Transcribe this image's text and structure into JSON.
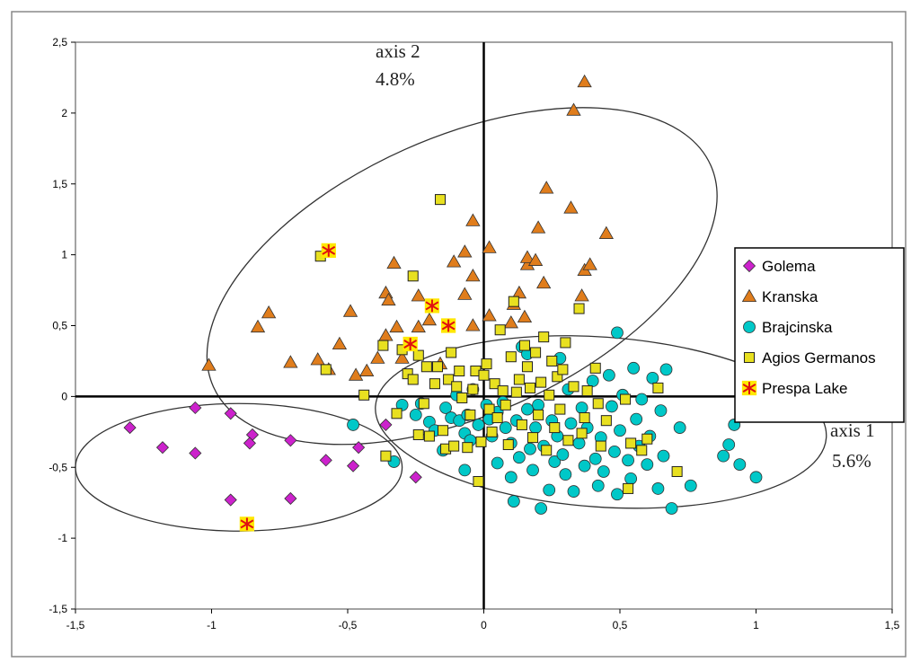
{
  "chart_data": {
    "type": "scatter",
    "title": "",
    "xlim": [
      -1.5,
      1.5
    ],
    "ylim": [
      -1.5,
      2.5
    ],
    "x_ticks": [
      "-1,5",
      "-1",
      "-0,5",
      "0",
      "0,5",
      "1",
      "1,5"
    ],
    "y_ticks": [
      "-1,5",
      "-1",
      "-0,5",
      "0",
      "0,5",
      "1",
      "1,5",
      "2",
      "2,5"
    ],
    "axis1": {
      "name": "axis 1",
      "percent": "5.6%"
    },
    "axis2": {
      "name": "axis 2",
      "percent": "4.8%"
    },
    "legend_position": "right",
    "ellipses": [
      {
        "group": "Kranska",
        "center": [
          -0.08,
          0.85
        ],
        "rx": 1.0,
        "ry": 0.98,
        "angle_deg": 24
      },
      {
        "group": "Brajcinska",
        "center": [
          0.43,
          -0.18
        ],
        "rx": 0.83,
        "ry": 0.6,
        "angle_deg": -4
      },
      {
        "group": "Golema",
        "center": [
          -0.9,
          -0.5
        ],
        "rx": 0.6,
        "ry": 0.45,
        "angle_deg": 0
      }
    ],
    "series": [
      {
        "name": "Golema",
        "marker": "diamond",
        "color": "#cc22cc",
        "points": [
          [
            -1.3,
            -0.22
          ],
          [
            -1.18,
            -0.36
          ],
          [
            -1.06,
            -0.08
          ],
          [
            -1.06,
            -0.4
          ],
          [
            -0.93,
            -0.12
          ],
          [
            -0.93,
            -0.73
          ],
          [
            -0.85,
            -0.27
          ],
          [
            -0.86,
            -0.33
          ],
          [
            -0.71,
            -0.31
          ],
          [
            -0.71,
            -0.72
          ],
          [
            -0.58,
            -0.45
          ],
          [
            -0.48,
            -0.49
          ],
          [
            -0.46,
            -0.36
          ],
          [
            -0.36,
            -0.2
          ],
          [
            -0.25,
            -0.57
          ]
        ]
      },
      {
        "name": "Kranska",
        "marker": "triangle",
        "color": "#e07d1c",
        "points": [
          [
            -1.01,
            0.22
          ],
          [
            -0.83,
            0.49
          ],
          [
            -0.79,
            0.59
          ],
          [
            -0.71,
            0.24
          ],
          [
            -0.61,
            0.26
          ],
          [
            -0.57,
            0.19
          ],
          [
            -0.53,
            0.37
          ],
          [
            -0.49,
            0.6
          ],
          [
            -0.47,
            0.15
          ],
          [
            -0.43,
            0.18
          ],
          [
            -0.39,
            0.27
          ],
          [
            -0.36,
            0.43
          ],
          [
            -0.32,
            0.49
          ],
          [
            -0.33,
            0.94
          ],
          [
            -0.36,
            0.73
          ],
          [
            -0.35,
            0.68
          ],
          [
            -0.3,
            0.27
          ],
          [
            -0.24,
            0.49
          ],
          [
            -0.24,
            0.71
          ],
          [
            -0.2,
            0.54
          ],
          [
            -0.16,
            0.23
          ],
          [
            -0.11,
            0.95
          ],
          [
            -0.07,
            1.02
          ],
          [
            -0.07,
            0.72
          ],
          [
            -0.04,
            0.5
          ],
          [
            -0.04,
            0.85
          ],
          [
            -0.04,
            1.24
          ],
          [
            0.02,
            1.05
          ],
          [
            0.02,
            0.57
          ],
          [
            0.1,
            0.52
          ],
          [
            0.11,
            0.65
          ],
          [
            0.13,
            0.73
          ],
          [
            0.15,
            0.56
          ],
          [
            0.16,
            0.93
          ],
          [
            0.16,
            0.98
          ],
          [
            0.19,
            0.96
          ],
          [
            0.2,
            1.19
          ],
          [
            0.23,
            1.47
          ],
          [
            0.22,
            0.8
          ],
          [
            0.32,
            1.33
          ],
          [
            0.33,
            2.02
          ],
          [
            0.37,
            2.22
          ],
          [
            0.36,
            0.71
          ],
          [
            0.37,
            0.89
          ],
          [
            0.39,
            0.93
          ],
          [
            0.45,
            1.15
          ]
        ]
      },
      {
        "name": "Brajcinska",
        "marker": "circle",
        "color": "#00c8c8",
        "points": [
          [
            -0.48,
            -0.2
          ],
          [
            -0.33,
            -0.46
          ],
          [
            -0.3,
            -0.06
          ],
          [
            -0.25,
            -0.13
          ],
          [
            -0.23,
            -0.05
          ],
          [
            -0.2,
            -0.18
          ],
          [
            -0.18,
            -0.24
          ],
          [
            -0.15,
            -0.38
          ],
          [
            -0.14,
            -0.08
          ],
          [
            -0.12,
            -0.15
          ],
          [
            -0.1,
            0.01
          ],
          [
            -0.09,
            -0.17
          ],
          [
            -0.07,
            -0.26
          ],
          [
            -0.06,
            -0.13
          ],
          [
            -0.05,
            -0.31
          ],
          [
            -0.07,
            -0.52
          ],
          [
            -0.04,
            0.05
          ],
          [
            -0.02,
            -0.2
          ],
          [
            0.01,
            -0.06
          ],
          [
            0.02,
            -0.16
          ],
          [
            0.03,
            -0.28
          ],
          [
            0.05,
            -0.11
          ],
          [
            0.05,
            -0.47
          ],
          [
            0.07,
            -0.04
          ],
          [
            0.08,
            -0.22
          ],
          [
            0.1,
            -0.33
          ],
          [
            0.1,
            -0.57
          ],
          [
            0.11,
            -0.74
          ],
          [
            0.12,
            -0.17
          ],
          [
            0.13,
            -0.43
          ],
          [
            0.14,
            0.35
          ],
          [
            0.16,
            0.3
          ],
          [
            0.16,
            -0.09
          ],
          [
            0.17,
            -0.37
          ],
          [
            0.18,
            -0.52
          ],
          [
            0.19,
            -0.22
          ],
          [
            0.2,
            -0.06
          ],
          [
            0.22,
            -0.35
          ],
          [
            0.21,
            -0.79
          ],
          [
            0.24,
            -0.66
          ],
          [
            0.25,
            -0.17
          ],
          [
            0.26,
            -0.46
          ],
          [
            0.27,
            -0.28
          ],
          [
            0.28,
            0.27
          ],
          [
            0.29,
            -0.41
          ],
          [
            0.3,
            -0.55
          ],
          [
            0.31,
            0.05
          ],
          [
            0.32,
            -0.19
          ],
          [
            0.33,
            -0.67
          ],
          [
            0.35,
            -0.33
          ],
          [
            0.36,
            -0.08
          ],
          [
            0.37,
            -0.49
          ],
          [
            0.38,
            -0.22
          ],
          [
            0.4,
            0.11
          ],
          [
            0.41,
            -0.44
          ],
          [
            0.42,
            -0.63
          ],
          [
            0.43,
            -0.29
          ],
          [
            0.44,
            -0.53
          ],
          [
            0.46,
            0.15
          ],
          [
            0.47,
            -0.07
          ],
          [
            0.48,
            -0.39
          ],
          [
            0.49,
            -0.69
          ],
          [
            0.5,
            -0.24
          ],
          [
            0.49,
            0.45
          ],
          [
            0.51,
            0.01
          ],
          [
            0.53,
            -0.45
          ],
          [
            0.54,
            -0.58
          ],
          [
            0.55,
            0.2
          ],
          [
            0.56,
            -0.16
          ],
          [
            0.57,
            -0.35
          ],
          [
            0.58,
            -0.02
          ],
          [
            0.6,
            -0.48
          ],
          [
            0.61,
            -0.28
          ],
          [
            0.62,
            0.13
          ],
          [
            0.64,
            -0.65
          ],
          [
            0.66,
            -0.42
          ],
          [
            0.65,
            -0.1
          ],
          [
            0.67,
            0.19
          ],
          [
            0.69,
            -0.79
          ],
          [
            0.72,
            -0.22
          ],
          [
            0.76,
            -0.63
          ],
          [
            0.88,
            -0.42
          ],
          [
            0.9,
            -0.34
          ],
          [
            0.92,
            -0.2
          ],
          [
            0.94,
            -0.48
          ],
          [
            1.0,
            -0.57
          ]
        ]
      },
      {
        "name": "Agios Germanos",
        "marker": "square",
        "color": "#e8e020",
        "points": [
          [
            -0.6,
            0.99
          ],
          [
            -0.58,
            0.19
          ],
          [
            -0.44,
            0.01
          ],
          [
            -0.37,
            0.36
          ],
          [
            -0.32,
            -0.12
          ],
          [
            -0.36,
            -0.42
          ],
          [
            -0.3,
            0.33
          ],
          [
            -0.28,
            0.16
          ],
          [
            -0.26,
            0.85
          ],
          [
            -0.26,
            0.12
          ],
          [
            -0.24,
            0.29
          ],
          [
            -0.24,
            -0.27
          ],
          [
            -0.22,
            -0.05
          ],
          [
            -0.21,
            0.21
          ],
          [
            -0.2,
            -0.28
          ],
          [
            -0.18,
            0.09
          ],
          [
            -0.17,
            0.21
          ],
          [
            -0.16,
            1.39
          ],
          [
            -0.15,
            -0.24
          ],
          [
            -0.14,
            -0.37
          ],
          [
            -0.13,
            0.12
          ],
          [
            -0.12,
            0.31
          ],
          [
            -0.11,
            -0.35
          ],
          [
            -0.1,
            0.07
          ],
          [
            -0.09,
            0.18
          ],
          [
            -0.08,
            -0.01
          ],
          [
            -0.06,
            -0.36
          ],
          [
            -0.05,
            -0.13
          ],
          [
            -0.04,
            0.05
          ],
          [
            -0.03,
            0.18
          ],
          [
            -0.02,
            -0.6
          ],
          [
            -0.01,
            -0.32
          ],
          [
            0.0,
            0.15
          ],
          [
            0.01,
            0.23
          ],
          [
            0.02,
            -0.09
          ],
          [
            0.03,
            -0.25
          ],
          [
            0.04,
            0.09
          ],
          [
            0.05,
            -0.15
          ],
          [
            0.06,
            0.47
          ],
          [
            0.07,
            0.04
          ],
          [
            0.08,
            -0.06
          ],
          [
            0.09,
            -0.34
          ],
          [
            0.1,
            0.28
          ],
          [
            0.11,
            0.67
          ],
          [
            0.12,
            0.03
          ],
          [
            0.13,
            0.12
          ],
          [
            0.14,
            -0.2
          ],
          [
            0.15,
            0.36
          ],
          [
            0.16,
            0.21
          ],
          [
            0.17,
            0.06
          ],
          [
            0.18,
            -0.29
          ],
          [
            0.19,
            0.31
          ],
          [
            0.2,
            -0.13
          ],
          [
            0.21,
            0.1
          ],
          [
            0.22,
            0.42
          ],
          [
            0.23,
            -0.38
          ],
          [
            0.24,
            0.01
          ],
          [
            0.25,
            0.25
          ],
          [
            0.26,
            -0.22
          ],
          [
            0.27,
            0.14
          ],
          [
            0.28,
            -0.09
          ],
          [
            0.29,
            0.19
          ],
          [
            0.3,
            0.38
          ],
          [
            0.31,
            -0.31
          ],
          [
            0.33,
            0.07
          ],
          [
            0.35,
            0.62
          ],
          [
            0.36,
            -0.26
          ],
          [
            0.37,
            -0.15
          ],
          [
            0.38,
            0.04
          ],
          [
            0.41,
            0.2
          ],
          [
            0.42,
            -0.05
          ],
          [
            0.43,
            -0.35
          ],
          [
            0.45,
            -0.17
          ],
          [
            0.52,
            -0.02
          ],
          [
            0.54,
            -0.33
          ],
          [
            0.58,
            -0.38
          ],
          [
            0.6,
            -0.3
          ],
          [
            0.53,
            -0.65
          ],
          [
            0.64,
            0.06
          ],
          [
            0.71,
            -0.53
          ]
        ]
      },
      {
        "name": "Prespa Lake",
        "marker": "asterisk",
        "color": "#e01010",
        "points": [
          [
            -0.57,
            1.03
          ],
          [
            -0.19,
            0.64
          ],
          [
            -0.13,
            0.5
          ],
          [
            -0.27,
            0.37
          ],
          [
            -0.87,
            -0.9
          ]
        ]
      }
    ]
  }
}
